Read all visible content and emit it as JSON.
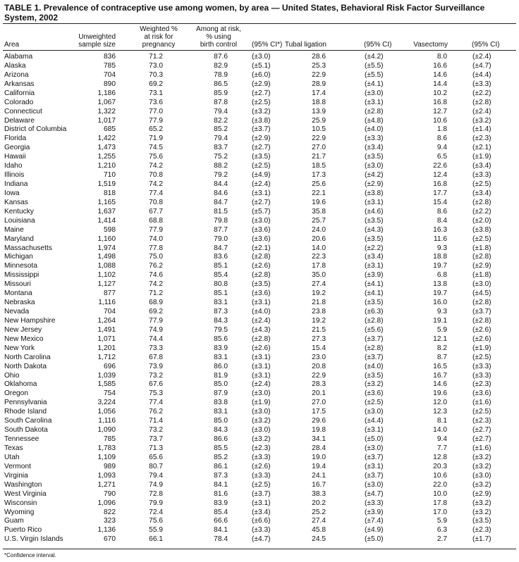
{
  "title": "TABLE 1. Prevalence of contraceptive use among women, by area — United States, Behavioral Risk Factor Surveillance System, 2002",
  "headers": {
    "area": "Area",
    "sample": [
      "Unweighted",
      "sample size"
    ],
    "weighted": [
      "Weighted %",
      "at risk for",
      "pregnancy"
    ],
    "birth_control": [
      "Among at risk,",
      "% using",
      "birth control"
    ],
    "bc_ci": "(95% CI*)",
    "tubal": "Tubal ligation",
    "tubal_ci": "(95% CI)",
    "vasectomy": "Vasectomy",
    "vas_ci": "(95% CI)"
  },
  "rows": [
    {
      "area": "Alabama",
      "sample": "836",
      "weighted": "71.2",
      "bc": "87.6",
      "bc_ci": "(±3.0)",
      "tubal": "28.6",
      "tubal_ci": "(±4.2)",
      "vas": "8.0",
      "vas_ci": "(±2.4)"
    },
    {
      "area": "Alaska",
      "sample": "785",
      "weighted": "73.0",
      "bc": "82.9",
      "bc_ci": "(±5.1)",
      "tubal": "25.3",
      "tubal_ci": "(±5.5)",
      "vas": "16.6",
      "vas_ci": "(±4.7)"
    },
    {
      "area": "Arizona",
      "sample": "704",
      "weighted": "70.3",
      "bc": "78.9",
      "bc_ci": "(±6.0)",
      "tubal": "22.9",
      "tubal_ci": "(±5.5)",
      "vas": "14.6",
      "vas_ci": "(±4.4)"
    },
    {
      "area": "Arkansas",
      "sample": "890",
      "weighted": "69.2",
      "bc": "86.5",
      "bc_ci": "(±2.9)",
      "tubal": "28.9",
      "tubal_ci": "(±4.1)",
      "vas": "14.4",
      "vas_ci": "(±3.3)"
    },
    {
      "area": "California",
      "sample": "1,186",
      "weighted": "73.1",
      "bc": "85.9",
      "bc_ci": "(±2.7)",
      "tubal": "17.4",
      "tubal_ci": "(±3.0)",
      "vas": "10.2",
      "vas_ci": "(±2.2)"
    },
    {
      "area": "Colorado",
      "sample": "1,067",
      "weighted": "73.6",
      "bc": "87.8",
      "bc_ci": "(±2.5)",
      "tubal": "18.8",
      "tubal_ci": "(±3.1)",
      "vas": "16.8",
      "vas_ci": "(±2.8)"
    },
    {
      "area": "Connecticut",
      "sample": "1,322",
      "weighted": "77.0",
      "bc": "79.4",
      "bc_ci": "(±3.2)",
      "tubal": "13.9",
      "tubal_ci": "(±2.8)",
      "vas": "12.7",
      "vas_ci": "(±2.4)"
    },
    {
      "area": "Delaware",
      "sample": "1,017",
      "weighted": "77.9",
      "bc": "82.2",
      "bc_ci": "(±3.8)",
      "tubal": "25.9",
      "tubal_ci": "(±4.8)",
      "vas": "10.6",
      "vas_ci": "(±3.2)"
    },
    {
      "area": "District of Columbia",
      "sample": "685",
      "weighted": "65.2",
      "bc": "85.2",
      "bc_ci": "(±3.7)",
      "tubal": "10.5",
      "tubal_ci": "(±4.0)",
      "vas": "1.8",
      "vas_ci": "(±1.4)"
    },
    {
      "area": "Florida",
      "sample": "1,422",
      "weighted": "71.9",
      "bc": "79.4",
      "bc_ci": "(±2.9)",
      "tubal": "22.9",
      "tubal_ci": "(±3.3)",
      "vas": "8.6",
      "vas_ci": "(±2.3)"
    },
    {
      "area": "Georgia",
      "sample": "1,473",
      "weighted": "74.5",
      "bc": "83.7",
      "bc_ci": "(±2.7)",
      "tubal": "27.0",
      "tubal_ci": "(±3.4)",
      "vas": "9.4",
      "vas_ci": "(±2.1)"
    },
    {
      "area": "Hawaii",
      "sample": "1,255",
      "weighted": "75.6",
      "bc": "75.2",
      "bc_ci": "(±3.5)",
      "tubal": "21.7",
      "tubal_ci": "(±3.5)",
      "vas": "6.5",
      "vas_ci": "(±1.9)"
    },
    {
      "area": "Idaho",
      "sample": "1,210",
      "weighted": "74.2",
      "bc": "88.2",
      "bc_ci": "(±2.5)",
      "tubal": "18.5",
      "tubal_ci": "(±3.0)",
      "vas": "22.6",
      "vas_ci": "(±3.4)"
    },
    {
      "area": "Illinois",
      "sample": "710",
      "weighted": "70.8",
      "bc": "79.2",
      "bc_ci": "(±4.9)",
      "tubal": "17.3",
      "tubal_ci": "(±4.2)",
      "vas": "12.4",
      "vas_ci": "(±3.3)"
    },
    {
      "area": "Indiana",
      "sample": "1,519",
      "weighted": "74.2",
      "bc": "84.4",
      "bc_ci": "(±2.4)",
      "tubal": "25.6",
      "tubal_ci": "(±2.9)",
      "vas": "16.8",
      "vas_ci": "(±2.5)"
    },
    {
      "area": "Iowa",
      "sample": "818",
      "weighted": "77.4",
      "bc": "84.6",
      "bc_ci": "(±3.1)",
      "tubal": "22.1",
      "tubal_ci": "(±3.8)",
      "vas": "17.7",
      "vas_ci": "(±3.4)"
    },
    {
      "area": "Kansas",
      "sample": "1,165",
      "weighted": "70.8",
      "bc": "84.7",
      "bc_ci": "(±2.7)",
      "tubal": "19.6",
      "tubal_ci": "(±3.1)",
      "vas": "15.4",
      "vas_ci": "(±2.8)"
    },
    {
      "area": "Kentucky",
      "sample": "1,637",
      "weighted": "67.7",
      "bc": "81.5",
      "bc_ci": "(±5.7)",
      "tubal": "35.8",
      "tubal_ci": "(±4.6)",
      "vas": "8.6",
      "vas_ci": "(±2.2)"
    },
    {
      "area": "Louisiana",
      "sample": "1,414",
      "weighted": "68.8",
      "bc": "79.8",
      "bc_ci": "(±3.0)",
      "tubal": "25.7",
      "tubal_ci": "(±3.5)",
      "vas": "8.4",
      "vas_ci": "(±2.0)"
    },
    {
      "area": "Maine",
      "sample": "598",
      "weighted": "77.9",
      "bc": "87.7",
      "bc_ci": "(±3.6)",
      "tubal": "24.0",
      "tubal_ci": "(±4.3)",
      "vas": "16.3",
      "vas_ci": "(±3.8)"
    },
    {
      "area": "Maryland",
      "sample": "1,160",
      "weighted": "74.0",
      "bc": "79.0",
      "bc_ci": "(±3.6)",
      "tubal": "20.6",
      "tubal_ci": "(±3.5)",
      "vas": "11.6",
      "vas_ci": "(±2.5)"
    },
    {
      "area": "Massachusetts",
      "sample": "1,974",
      "weighted": "77.8",
      "bc": "84.7",
      "bc_ci": "(±2.1)",
      "tubal": "14.0",
      "tubal_ci": "(±2.2)",
      "vas": "9.3",
      "vas_ci": "(±1.8)"
    },
    {
      "area": "Michigan",
      "sample": "1,498",
      "weighted": "75.0",
      "bc": "83.6",
      "bc_ci": "(±2.8)",
      "tubal": "22.3",
      "tubal_ci": "(±3.4)",
      "vas": "18.8",
      "vas_ci": "(±2.8)"
    },
    {
      "area": "Minnesota",
      "sample": "1,088",
      "weighted": "76.2",
      "bc": "85.1",
      "bc_ci": "(±2.6)",
      "tubal": "17.8",
      "tubal_ci": "(±3.1)",
      "vas": "19.7",
      "vas_ci": "(±2.9)"
    },
    {
      "area": "Mississippi",
      "sample": "1,102",
      "weighted": "74.6",
      "bc": "85.4",
      "bc_ci": "(±2.8)",
      "tubal": "35.0",
      "tubal_ci": "(±3.9)",
      "vas": "6.8",
      "vas_ci": "(±1.8)"
    },
    {
      "area": "Missouri",
      "sample": "1,127",
      "weighted": "74.2",
      "bc": "80.8",
      "bc_ci": "(±3.5)",
      "tubal": "27.4",
      "tubal_ci": "(±4.1)",
      "vas": "13.8",
      "vas_ci": "(±3.0)"
    },
    {
      "area": "Montana",
      "sample": "877",
      "weighted": "71.2",
      "bc": "85.1",
      "bc_ci": "(±3.6)",
      "tubal": "19.2",
      "tubal_ci": "(±4.1)",
      "vas": "19.7",
      "vas_ci": "(±4.5)"
    },
    {
      "area": "Nebraska",
      "sample": "1,116",
      "weighted": "68.9",
      "bc": "83.1",
      "bc_ci": "(±3.1)",
      "tubal": "21.8",
      "tubal_ci": "(±3.5)",
      "vas": "16.0",
      "vas_ci": "(±2.8)"
    },
    {
      "area": "Nevada",
      "sample": "704",
      "weighted": "69.2",
      "bc": "87.3",
      "bc_ci": "(±4.0)",
      "tubal": "23.8",
      "tubal_ci": "(±6.3)",
      "vas": "9.3",
      "vas_ci": "(±3.7)"
    },
    {
      "area": "New Hampshire",
      "sample": "1,264",
      "weighted": "77.9",
      "bc": "84.3",
      "bc_ci": "(±2.4)",
      "tubal": "19.2",
      "tubal_ci": "(±2.8)",
      "vas": "19.1",
      "vas_ci": "(±2.8)"
    },
    {
      "area": "New Jersey",
      "sample": "1,491",
      "weighted": "74.9",
      "bc": "79.5",
      "bc_ci": "(±4.3)",
      "tubal": "21.5",
      "tubal_ci": "(±5.6)",
      "vas": "5.9",
      "vas_ci": "(±2.6)"
    },
    {
      "area": "New Mexico",
      "sample": "1,071",
      "weighted": "74.4",
      "bc": "85.6",
      "bc_ci": "(±2.8)",
      "tubal": "27.3",
      "tubal_ci": "(±3.7)",
      "vas": "12.1",
      "vas_ci": "(±2.6)"
    },
    {
      "area": "New York",
      "sample": "1,201",
      "weighted": "73.3",
      "bc": "83.9",
      "bc_ci": "(±2.6)",
      "tubal": "15.4",
      "tubal_ci": "(±2.8)",
      "vas": "8.2",
      "vas_ci": "(±1.9)"
    },
    {
      "area": "North Carolina",
      "sample": "1,712",
      "weighted": "67.8",
      "bc": "83.1",
      "bc_ci": "(±3.1)",
      "tubal": "23.0",
      "tubal_ci": "(±3.7)",
      "vas": "8.7",
      "vas_ci": "(±2.5)"
    },
    {
      "area": "North Dakota",
      "sample": "696",
      "weighted": "73.9",
      "bc": "86.0",
      "bc_ci": "(±3.1)",
      "tubal": "20.8",
      "tubal_ci": "(±4.0)",
      "vas": "16.5",
      "vas_ci": "(±3.3)"
    },
    {
      "area": "Ohio",
      "sample": "1,039",
      "weighted": "73.2",
      "bc": "81.9",
      "bc_ci": "(±3.1)",
      "tubal": "22.9",
      "tubal_ci": "(±3.5)",
      "vas": "16.7",
      "vas_ci": "(±3.3)"
    },
    {
      "area": "Oklahoma",
      "sample": "1,585",
      "weighted": "67.6",
      "bc": "85.0",
      "bc_ci": "(±2.4)",
      "tubal": "28.3",
      "tubal_ci": "(±3.2)",
      "vas": "14.6",
      "vas_ci": "(±2.3)"
    },
    {
      "area": "Oregon",
      "sample": "754",
      "weighted": "75.3",
      "bc": "87.9",
      "bc_ci": "(±3.0)",
      "tubal": "20.1",
      "tubal_ci": "(±3.6)",
      "vas": "19.6",
      "vas_ci": "(±3.6)"
    },
    {
      "area": "Pennsylvania",
      "sample": "3,224",
      "weighted": "77.4",
      "bc": "83.8",
      "bc_ci": "(±1.9)",
      "tubal": "27.0",
      "tubal_ci": "(±2.5)",
      "vas": "12.0",
      "vas_ci": "(±1.6)"
    },
    {
      "area": "Rhode Island",
      "sample": "1,056",
      "weighted": "76.2",
      "bc": "83.1",
      "bc_ci": "(±3.0)",
      "tubal": "17.5",
      "tubal_ci": "(±3.0)",
      "vas": "12.3",
      "vas_ci": "(±2.5)"
    },
    {
      "area": "South Carolina",
      "sample": "1,116",
      "weighted": "71.4",
      "bc": "85.0",
      "bc_ci": "(±3.2)",
      "tubal": "29.6",
      "tubal_ci": "(±4.4)",
      "vas": "8.1",
      "vas_ci": "(±2.3)"
    },
    {
      "area": "South Dakota",
      "sample": "1,090",
      "weighted": "73.2",
      "bc": "84.3",
      "bc_ci": "(±3.0)",
      "tubal": "19.8",
      "tubal_ci": "(±3.1)",
      "vas": "14.0",
      "vas_ci": "(±2.7)"
    },
    {
      "area": "Tennessee",
      "sample": "785",
      "weighted": "73.7",
      "bc": "86.6",
      "bc_ci": "(±3.2)",
      "tubal": "34.1",
      "tubal_ci": "(±5.0)",
      "vas": "9.4",
      "vas_ci": "(±2.7)"
    },
    {
      "area": "Texas",
      "sample": "1,783",
      "weighted": "71.3",
      "bc": "85.5",
      "bc_ci": "(±2.3)",
      "tubal": "28.4",
      "tubal_ci": "(±3.0)",
      "vas": "7.7",
      "vas_ci": "(±1.6)"
    },
    {
      "area": "Utah",
      "sample": "1,109",
      "weighted": "65.6",
      "bc": "85.2",
      "bc_ci": "(±3.3)",
      "tubal": "19.0",
      "tubal_ci": "(±3.7)",
      "vas": "12.8",
      "vas_ci": "(±3.2)"
    },
    {
      "area": "Vermont",
      "sample": "989",
      "weighted": "80.7",
      "bc": "86.1",
      "bc_ci": "(±2.6)",
      "tubal": "19.4",
      "tubal_ci": "(±3.1)",
      "vas": "20.3",
      "vas_ci": "(±3.2)"
    },
    {
      "area": "Virginia",
      "sample": "1,093",
      "weighted": "79.4",
      "bc": "87.3",
      "bc_ci": "(±3.3)",
      "tubal": "24.1",
      "tubal_ci": "(±3.7)",
      "vas": "10.6",
      "vas_ci": "(±3.0)"
    },
    {
      "area": "Washington",
      "sample": "1,271",
      "weighted": "74.9",
      "bc": "84.1",
      "bc_ci": "(±2.5)",
      "tubal": "16.7",
      "tubal_ci": "(±3.0)",
      "vas": "22.0",
      "vas_ci": "(±3.2)"
    },
    {
      "area": "West Virginia",
      "sample": "790",
      "weighted": "72.8",
      "bc": "81.6",
      "bc_ci": "(±3.7)",
      "tubal": "38.3",
      "tubal_ci": "(±4.7)",
      "vas": "10.0",
      "vas_ci": "(±2.9)"
    },
    {
      "area": "Wisconsin",
      "sample": "1,096",
      "weighted": "79.9",
      "bc": "83.9",
      "bc_ci": "(±3.1)",
      "tubal": "20.2",
      "tubal_ci": "(±3.3)",
      "vas": "17.8",
      "vas_ci": "(±3.2)"
    },
    {
      "area": "Wyoming",
      "sample": "822",
      "weighted": "72.4",
      "bc": "85.4",
      "bc_ci": "(±3.4)",
      "tubal": "25.2",
      "tubal_ci": "(±3.9)",
      "vas": "17.0",
      "vas_ci": "(±3.2)"
    },
    {
      "area": "Guam",
      "sample": "323",
      "weighted": "75.6",
      "bc": "66.6",
      "bc_ci": "(±6.6)",
      "tubal": "27.4",
      "tubal_ci": "(±7.4)",
      "vas": "5.9",
      "vas_ci": "(±3.5)"
    },
    {
      "area": "Puerto Rico",
      "sample": "1,136",
      "weighted": "55.9",
      "bc": "84.1",
      "bc_ci": "(±3.3)",
      "tubal": "45.8",
      "tubal_ci": "(±4.9)",
      "vas": "6.3",
      "vas_ci": "(±2.3)"
    },
    {
      "area": "U.S. Virgin Islands",
      "sample": "670",
      "weighted": "66.1",
      "bc": "78.4",
      "bc_ci": "(±4.7)",
      "tubal": "24.5",
      "tubal_ci": "(±5.0)",
      "vas": "2.7",
      "vas_ci": "(±1.7)"
    }
  ],
  "footnote": "*Confidence interval."
}
